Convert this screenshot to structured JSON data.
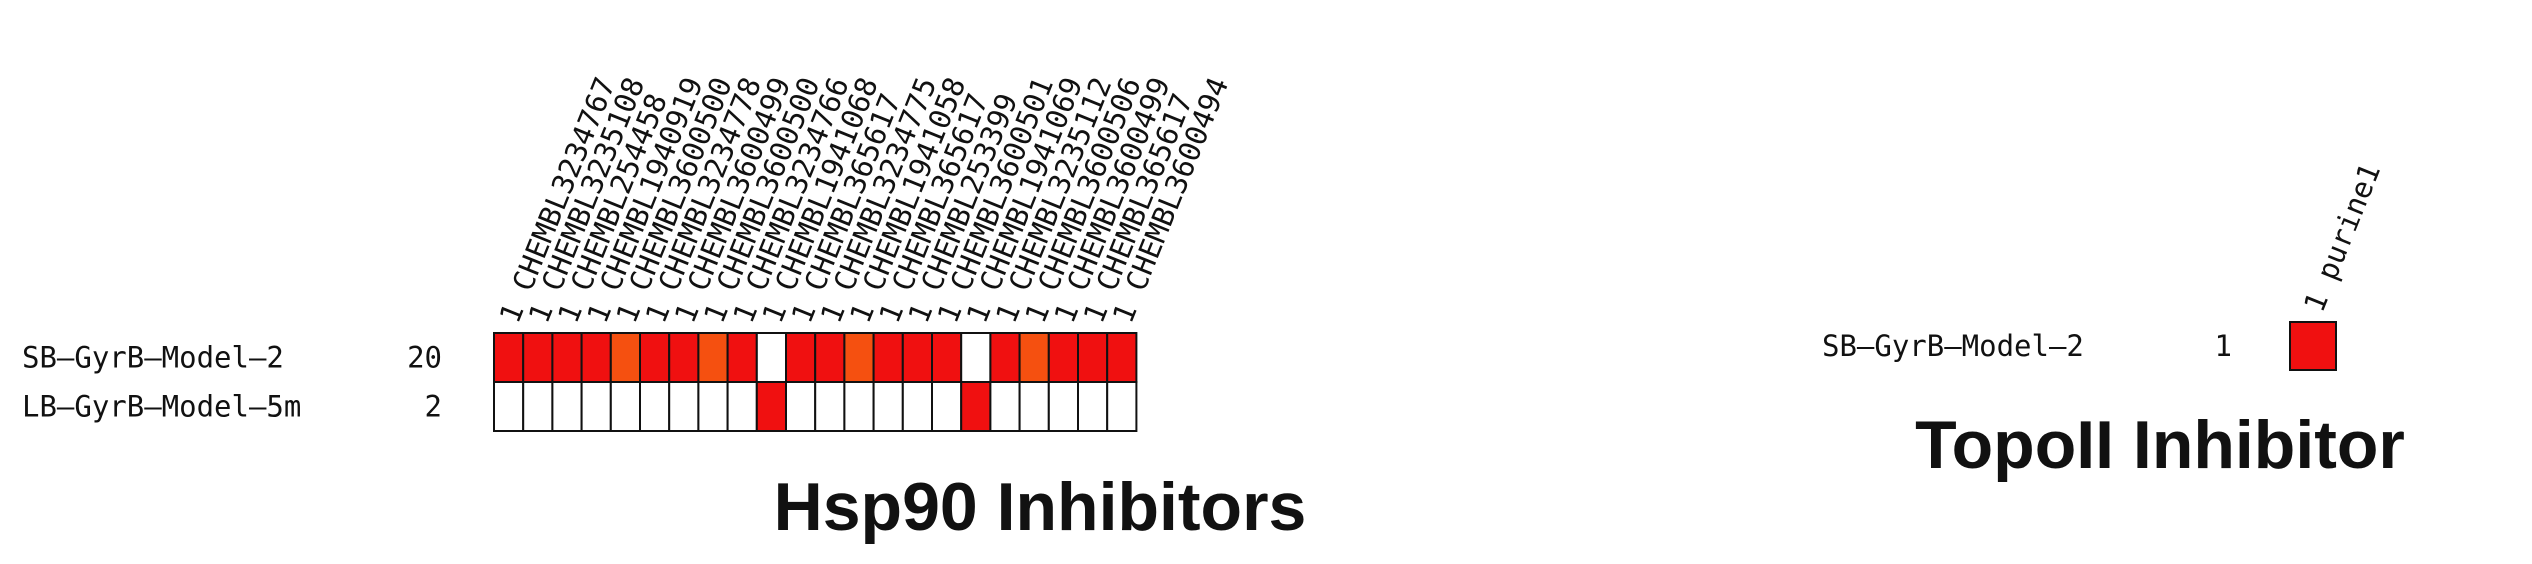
{
  "chart_data": [
    {
      "type": "heatmap",
      "title": "Hsp90 Inhibitors",
      "columns": [
        "CHEMBL3234767",
        "CHEMBL3235108",
        "CHEMBL254458",
        "CHEMBL1940919",
        "CHEMBL3600500",
        "CHEMBL3234778",
        "CHEMBL3600499",
        "CHEMBL3600500",
        "CHEMBL3234766",
        "CHEMBL1941068",
        "CHEMBL365617",
        "CHEMBL3234775",
        "CHEMBL1941058",
        "CHEMBL365617",
        "CHEMBL253399",
        "CHEMBL3600501",
        "CHEMBL1941069",
        "CHEMBL3235112",
        "CHEMBL3600506",
        "CHEMBL3600499",
        "CHEMBL365617",
        "CHEMBL3600494"
      ],
      "column_counts": [
        "1",
        "1",
        "1",
        "1",
        "1",
        "1",
        "1",
        "1",
        "1",
        "1",
        "1",
        "1",
        "1",
        "1",
        "1",
        "1",
        "1",
        "1",
        "1",
        "1",
        "1",
        "1"
      ],
      "rows": [
        {
          "label": "SB–GyrB–Model–2",
          "count": "20",
          "cells": [
            "red",
            "red",
            "red",
            "red",
            "orange",
            "red",
            "red",
            "orange",
            "red",
            "empty",
            "red",
            "red",
            "orange",
            "red",
            "red",
            "red",
            "empty",
            "red",
            "orange",
            "red",
            "red",
            "red"
          ]
        },
        {
          "label": "LB–GyrB–Model–5m",
          "count": "2",
          "cells": [
            "empty",
            "empty",
            "empty",
            "empty",
            "empty",
            "empty",
            "empty",
            "empty",
            "empty",
            "red",
            "empty",
            "empty",
            "empty",
            "empty",
            "empty",
            "empty",
            "red",
            "empty",
            "empty",
            "empty",
            "empty",
            "empty"
          ]
        }
      ]
    },
    {
      "type": "heatmap",
      "title": "TopoII Inhibitor",
      "columns": [
        "purine1"
      ],
      "column_counts": [
        "1"
      ],
      "rows": [
        {
          "label": "SB–GyrB–Model–2",
          "count": "1",
          "cells": [
            "red"
          ]
        }
      ]
    }
  ],
  "colors": {
    "red": "#f01010",
    "orange": "#f55010",
    "empty": "#ffffff"
  }
}
